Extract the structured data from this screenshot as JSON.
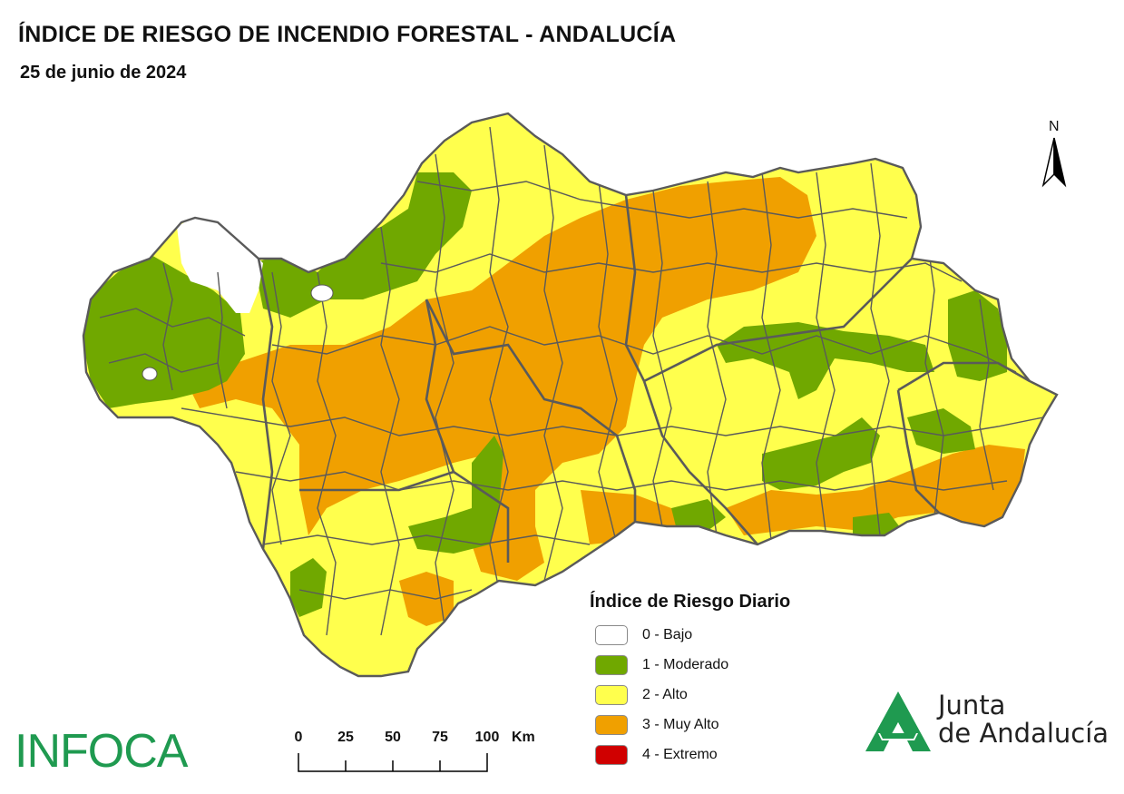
{
  "header": {
    "title": "ÍNDICE DE RIESGO DE INCENDIO FORESTAL - ANDALUCÍA",
    "date": "25 de junio de 2024"
  },
  "north_arrow": {
    "label": "N"
  },
  "legend": {
    "title": "Índice de Riesgo Diario",
    "items": [
      {
        "label": "0 - Bajo",
        "color": "#ffffff"
      },
      {
        "label": "1 - Moderado",
        "color": "#70a800"
      },
      {
        "label": "2 - Alto",
        "color": "#ffff4d"
      },
      {
        "label": "3 - Muy Alto",
        "color": "#f0a000"
      },
      {
        "label": "4 - Extremo",
        "color": "#d00000"
      }
    ]
  },
  "scale_bar": {
    "ticks": [
      "0",
      "25",
      "50",
      "75",
      "100"
    ],
    "unit": "Km"
  },
  "logos": {
    "infoca": "INFOCA",
    "junta_line1": "Junta",
    "junta_line2": "de Andalucía"
  },
  "colors": {
    "bajo": "#ffffff",
    "moderado": "#70a800",
    "alto": "#ffff4d",
    "muy_alto": "#f0a000",
    "extremo": "#d00000",
    "borders": "#5a5a5a",
    "brand_green": "#1f9a50"
  }
}
